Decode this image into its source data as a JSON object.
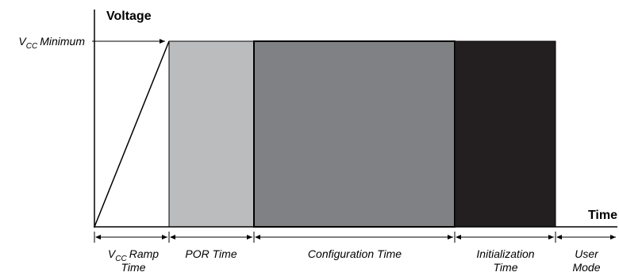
{
  "axes": {
    "y_label": "Voltage",
    "x_label": "Time",
    "vcc_level": {
      "symbol": "V",
      "subscript": "CC",
      "text": "Minimum"
    }
  },
  "phases": [
    {
      "id": "ramp",
      "label": "Ramp",
      "label_line2": "Time",
      "prefix_symbol": "V",
      "prefix_subscript": "CC",
      "color": "#ffffff"
    },
    {
      "id": "por",
      "label": "POR Time",
      "color": "#bbbcbe"
    },
    {
      "id": "config",
      "label": "Configuration Time",
      "color": "#808184"
    },
    {
      "id": "init",
      "label": "Initialization",
      "label_line2": "Time",
      "color": "#231f20"
    },
    {
      "id": "user",
      "label": "User",
      "label_line2": "Mode"
    }
  ]
}
